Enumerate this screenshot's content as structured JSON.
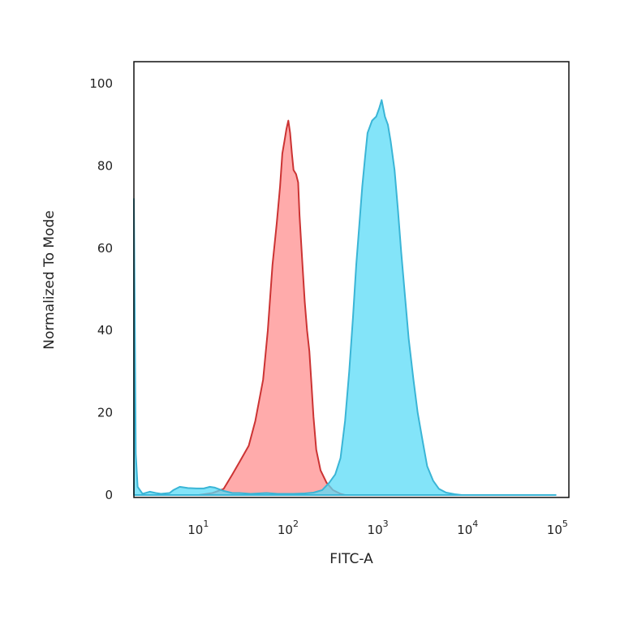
{
  "chart_data": {
    "type": "area",
    "title": "",
    "xlabel": "FITC-A",
    "ylabel": "Normalized To Mode",
    "x_scale": "log",
    "xlim": [
      2,
      140000
    ],
    "ylim": [
      0,
      100
    ],
    "x_ticks": [
      {
        "value": 10,
        "base": "10",
        "exp": "1"
      },
      {
        "value": 100,
        "base": "10",
        "exp": "2"
      },
      {
        "value": 1000,
        "base": "10",
        "exp": "3"
      },
      {
        "value": 10000,
        "base": "10",
        "exp": "4"
      },
      {
        "value": 100000,
        "base": "10",
        "exp": "5"
      }
    ],
    "y_ticks": [
      {
        "value": 0,
        "label": "0"
      },
      {
        "value": 20,
        "label": "20"
      },
      {
        "value": 40,
        "label": "40"
      },
      {
        "value": 60,
        "label": "60"
      },
      {
        "value": 80,
        "label": "80"
      },
      {
        "value": 100,
        "label": "100"
      }
    ],
    "grid": false,
    "series": [
      {
        "color": "#ff8f8f",
        "stroke": "#cc3333",
        "fill_opacity": 0.75,
        "points": [
          [
            10.5,
            0
          ],
          [
            15,
            0.5
          ],
          [
            20,
            1.5
          ],
          [
            25,
            5
          ],
          [
            30,
            8
          ],
          [
            38,
            12
          ],
          [
            45,
            18
          ],
          [
            55,
            28
          ],
          [
            62,
            40
          ],
          [
            70,
            56
          ],
          [
            78,
            66
          ],
          [
            85,
            75
          ],
          [
            90,
            83
          ],
          [
            95,
            86
          ],
          [
            100,
            89
          ],
          [
            105,
            91
          ],
          [
            110,
            88
          ],
          [
            115,
            83
          ],
          [
            120,
            79
          ],
          [
            128,
            78
          ],
          [
            135,
            76
          ],
          [
            140,
            68
          ],
          [
            150,
            57
          ],
          [
            160,
            47
          ],
          [
            170,
            40
          ],
          [
            180,
            35
          ],
          [
            190,
            27
          ],
          [
            200,
            19
          ],
          [
            215,
            11
          ],
          [
            240,
            6
          ],
          [
            280,
            3
          ],
          [
            330,
            1.2
          ],
          [
            400,
            0.3
          ],
          [
            450,
            0
          ]
        ]
      },
      {
        "color": "#59dbf7",
        "stroke": "#3ab5d6",
        "fill_opacity": 0.75,
        "points": [
          [
            2,
            72
          ],
          [
            2.05,
            40
          ],
          [
            2.1,
            10
          ],
          [
            2.2,
            2
          ],
          [
            2.5,
            0.3
          ],
          [
            3,
            0.8
          ],
          [
            3.5,
            0.5
          ],
          [
            4,
            0.3
          ],
          [
            5,
            0.5
          ],
          [
            5.5,
            1.2
          ],
          [
            6.5,
            2
          ],
          [
            8,
            1.7
          ],
          [
            10,
            1.6
          ],
          [
            12,
            1.6
          ],
          [
            14,
            2
          ],
          [
            16,
            1.8
          ],
          [
            20,
            1.0
          ],
          [
            25,
            0.5
          ],
          [
            30,
            0.5
          ],
          [
            40,
            0.3
          ],
          [
            60,
            0.5
          ],
          [
            80,
            0.3
          ],
          [
            120,
            0.3
          ],
          [
            160,
            0.4
          ],
          [
            200,
            0.6
          ],
          [
            250,
            1.2
          ],
          [
            300,
            3
          ],
          [
            350,
            5
          ],
          [
            400,
            9
          ],
          [
            450,
            18
          ],
          [
            500,
            30
          ],
          [
            550,
            43
          ],
          [
            600,
            56
          ],
          [
            650,
            66
          ],
          [
            700,
            75
          ],
          [
            750,
            82
          ],
          [
            800,
            88
          ],
          [
            900,
            91
          ],
          [
            1000,
            92
          ],
          [
            1080,
            94
          ],
          [
            1150,
            96
          ],
          [
            1200,
            94
          ],
          [
            1250,
            92
          ],
          [
            1350,
            90
          ],
          [
            1450,
            86
          ],
          [
            1600,
            79
          ],
          [
            1750,
            69
          ],
          [
            1900,
            59
          ],
          [
            2100,
            48
          ],
          [
            2300,
            38
          ],
          [
            2600,
            28
          ],
          [
            2900,
            20
          ],
          [
            3300,
            13
          ],
          [
            3700,
            7
          ],
          [
            4300,
            3.5
          ],
          [
            5000,
            1.5
          ],
          [
            6000,
            0.6
          ],
          [
            7500,
            0.2
          ],
          [
            9000,
            0
          ],
          [
            100000,
            0
          ]
        ]
      }
    ]
  }
}
